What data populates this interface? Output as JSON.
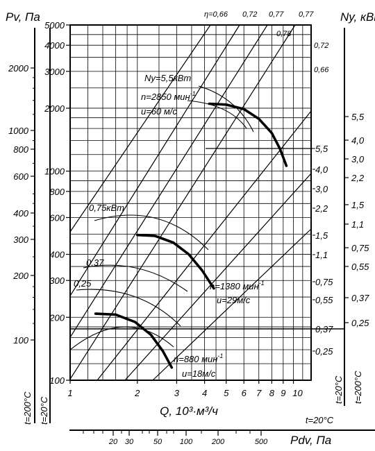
{
  "chart_data": {
    "type": "line",
    "title": "",
    "xlabel": "Q, 10³·м³/ч",
    "ylabel_left": "Pv, Па",
    "ylabel_right": "Ny, кВт",
    "xlabel_bottom": "Pdv, Па",
    "log_scale": true,
    "grid": true,
    "xlim": [
      1,
      12
    ],
    "ylim": [
      100,
      5000
    ],
    "x_ticks": [
      "1",
      "2",
      "3",
      "4",
      "5",
      "6",
      "7",
      "8",
      "9",
      "10"
    ],
    "y_ticks_main": [
      "100",
      "200",
      "300",
      "400",
      "600",
      "800",
      "1000",
      "2000",
      "3000",
      "4000",
      "5000"
    ],
    "y_ticks_outer_left": [
      "100",
      "200",
      "300",
      "400",
      "600",
      "800",
      "1000",
      "2000"
    ],
    "temp_labels": {
      "outer_left": "t=200°C",
      "inner_left": "t=20°C",
      "bottom_scale": "t=20°C",
      "inner_right": "t=20°C",
      "outer_right": "t=200°C"
    },
    "pdv_ticks": [
      "20",
      "30",
      "50",
      "100",
      "200",
      "500"
    ],
    "efficiency_labels": [
      "η=0,66",
      "0,72",
      "0,77",
      "0,77",
      "0,78",
      "0,72",
      "0,66"
    ],
    "power_scale_inner": [
      "5,5",
      "4,0",
      "3,0",
      "2,2",
      "1,5",
      "1,1",
      "0,75",
      "0,55",
      "0,37",
      "0,25"
    ],
    "power_scale_outer": [
      "5,5",
      "4,0",
      "3,0",
      "2,2",
      "1,5",
      "1,1",
      "0,75",
      "0,55",
      "0,37",
      "0,25"
    ],
    "power_inside_labels": [
      "Ny=5,5кВт",
      "0,75кВт",
      "0,37",
      "0,25"
    ],
    "series": [
      {
        "name": "n=2850 мин⁻¹, u=60 м/с",
        "label_speed": "n=2850 мин",
        "label_exp": "-1",
        "label_velocity": "u=60 м/с",
        "x": [
          4.2,
          5.0,
          6.0,
          7.0,
          8.0,
          8.7,
          9.3
        ],
        "y": [
          2100,
          2080,
          1980,
          1780,
          1520,
          1280,
          1060
        ]
      },
      {
        "name": "n=1380 мин⁻¹, u=29 м/с",
        "label_speed": "n=1380 мин",
        "label_exp": "-1",
        "label_velocity": "u=29м/с",
        "x": [
          2.0,
          2.4,
          2.9,
          3.4,
          3.9,
          4.4
        ],
        "y": [
          495,
          490,
          455,
          400,
          335,
          275
        ]
      },
      {
        "name": "n=880 мин⁻¹, u=18 м/с",
        "label_speed": "n=880 мин",
        "label_exp": "-1",
        "label_velocity": "u=18м/с",
        "x": [
          1.3,
          1.6,
          1.95,
          2.3,
          2.6,
          2.85
        ],
        "y": [
          208,
          206,
          190,
          165,
          138,
          115
        ]
      }
    ]
  }
}
